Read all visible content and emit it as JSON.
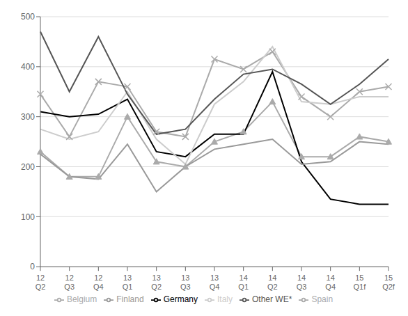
{
  "chart_data": {
    "type": "line",
    "categories": [
      "12\nQ2",
      "12\nQ3",
      "12\nQ4",
      "13\nQ1",
      "13\nQ2",
      "13\nQ3",
      "13\nQ4",
      "14\nQ1",
      "14\nQ2",
      "14\nQ3",
      "14\nQ4",
      "15\nQ1f",
      "15\nQ2f"
    ],
    "series": [
      {
        "name": "Spain",
        "color": "#aaaaaa",
        "marker": "triangle",
        "values": [
          230,
          180,
          180,
          300,
          210,
          200,
          250,
          270,
          330,
          220,
          220,
          260,
          250
        ]
      },
      {
        "name": "Belgium",
        "color": "#aaaaaa",
        "marker": "x",
        "values": [
          345,
          260,
          370,
          360,
          270,
          260,
          415,
          395,
          430,
          340,
          300,
          350,
          360
        ]
      },
      {
        "name": "Germany",
        "color": "#000000",
        "values": [
          310,
          300,
          305,
          335,
          230,
          220,
          265,
          265,
          390,
          210,
          135,
          125,
          125
        ]
      },
      {
        "name": "Italy",
        "color": "#cccccc",
        "values": [
          275,
          255,
          270,
          350,
          255,
          205,
          325,
          370,
          440,
          330,
          325,
          340,
          340
        ]
      },
      {
        "name": "Finland",
        "color": "#999999",
        "values": [
          225,
          180,
          175,
          245,
          150,
          200,
          235,
          245,
          255,
          205,
          210,
          250,
          245
        ]
      },
      {
        "name": "Other WE*",
        "color": "#555555",
        "values": [
          470,
          350,
          460,
          345,
          265,
          275,
          335,
          385,
          395,
          365,
          325,
          365,
          415
        ]
      }
    ],
    "ylim": [
      0,
      500
    ],
    "yticks": [
      0,
      100,
      200,
      300,
      400,
      500
    ],
    "grid": true,
    "legend": "bottom"
  }
}
